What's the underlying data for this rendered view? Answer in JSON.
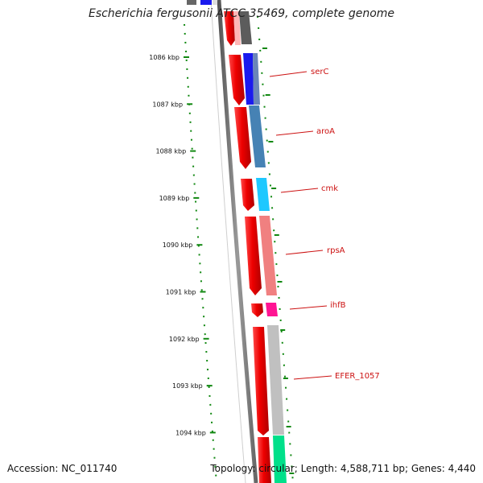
{
  "title": "Escherichia fergusonii ATCC 35469, complete genome",
  "footer": {
    "accession": "Accession: NC_011740",
    "summary": "Topology: circular; Length: 4,588,711 bp; Genes: 4,440"
  },
  "ruler": {
    "ticks": [
      "1086 kbp",
      "1087 kbp",
      "1088 kbp",
      "1089 kbp",
      "1090 kbp",
      "1091 kbp",
      "1092 kbp",
      "1093 kbp",
      "1094 kbp"
    ]
  },
  "genes": [
    {
      "label": "serC",
      "color": "#1a1aee"
    },
    {
      "label": "aroA",
      "color": "#4682b4"
    },
    {
      "label": "cmk",
      "color": "#1ec8ff"
    },
    {
      "label": "rpsA",
      "color": "#f08080"
    },
    {
      "label": "ihfB",
      "color": "#ff1493"
    },
    {
      "label": "EFER_1057",
      "color": "#c0c0c0"
    }
  ],
  "colors": {
    "cds_strand": "#ee0000",
    "label_color": "#cc1111",
    "backbone": "#7a7a7a",
    "tick_color": "#118811"
  }
}
